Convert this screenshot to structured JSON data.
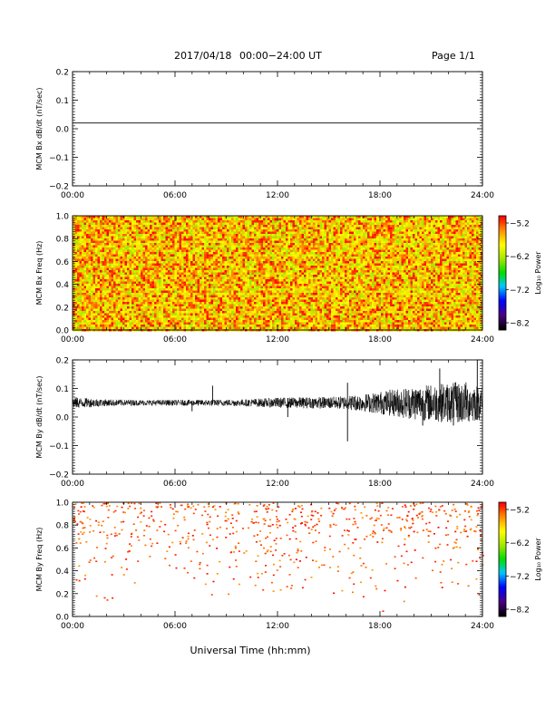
{
  "header": {
    "date": "2017/04/18",
    "range": "00:00−24:00 UT",
    "page": "Page 1/1"
  },
  "footer": {
    "xlabel": "Universal Time (hh:mm)"
  },
  "chart_data": [
    {
      "type": "line",
      "ylabel": "MCM Bx dB/dt (nT/sec)",
      "xlim": [
        0,
        24
      ],
      "ylim": [
        -0.2,
        0.2
      ],
      "x_ticks": [
        "00:00",
        "06:00",
        "12:00",
        "18:00",
        "24:00"
      ],
      "y_ticks": [
        "−0.2",
        "−0.1",
        "0.0",
        "0.1",
        "0.2"
      ],
      "series": [
        {
          "x": [
            0,
            24
          ],
          "y": [
            0.02,
            0.02
          ]
        }
      ]
    },
    {
      "type": "heatmap",
      "ylabel": "MCM Bx Freq (Hz)",
      "xlim": [
        0,
        24
      ],
      "ylim": [
        0,
        1
      ],
      "x_ticks": [
        "00:00",
        "06:00",
        "12:00",
        "18:00",
        "24:00"
      ],
      "y_ticks": [
        "0.0",
        "0.2",
        "0.4",
        "0.6",
        "0.8",
        "1.0"
      ],
      "colorbar": {
        "label": "Log₁₀ Power",
        "ticks": [
          "−5.2",
          "−6.2",
          "−7.2",
          "−8.2"
        ],
        "range": [
          -8.2,
          -5.2
        ]
      },
      "fill": "dense"
    },
    {
      "type": "line",
      "ylabel": "MCM By dB/dt (nT/sec)",
      "xlim": [
        0,
        24
      ],
      "ylim": [
        -0.2,
        0.2
      ],
      "x_ticks": [
        "00:00",
        "06:00",
        "12:00",
        "18:00",
        "24:00"
      ],
      "y_ticks": [
        "−0.2",
        "−0.1",
        "0.0",
        "0.1",
        "0.2"
      ],
      "envelope": {
        "x": [
          0,
          2,
          4,
          6,
          8,
          10,
          12,
          14,
          15.5,
          17,
          18,
          19,
          20,
          21,
          22,
          23,
          24
        ],
        "amp": [
          0.02,
          0.012,
          0.01,
          0.01,
          0.011,
          0.012,
          0.018,
          0.02,
          0.022,
          0.03,
          0.04,
          0.05,
          0.06,
          0.065,
          0.07,
          0.075,
          0.06
        ],
        "center": 0.05
      },
      "spikes": [
        {
          "x": 16.1,
          "y": -0.085
        },
        {
          "x": 16.1,
          "y": 0.12
        },
        {
          "x": 8.2,
          "y": 0.11
        },
        {
          "x": 7.0,
          "y": 0.02
        },
        {
          "x": 12.6,
          "y": 0.0
        },
        {
          "x": 21.5,
          "y": 0.17
        },
        {
          "x": 23.7,
          "y": 0.2
        },
        {
          "x": 20.5,
          "y": -0.03
        },
        {
          "x": 22.3,
          "y": -0.03
        }
      ]
    },
    {
      "type": "heatmap",
      "ylabel": "MCM By Freq (Hz)",
      "xlim": [
        0,
        24
      ],
      "ylim": [
        0,
        1
      ],
      "x_ticks": [
        "00:00",
        "06:00",
        "12:00",
        "18:00",
        "24:00"
      ],
      "y_ticks": [
        "0.0",
        "0.2",
        "0.4",
        "0.6",
        "0.8",
        "1.0"
      ],
      "colorbar": {
        "label": "Log₁₀ Power",
        "ticks": [
          "−5.2",
          "−6.2",
          "−7.2",
          "−8.2"
        ],
        "range": [
          -8.2,
          -5.2
        ]
      },
      "fill": "sparse"
    }
  ]
}
